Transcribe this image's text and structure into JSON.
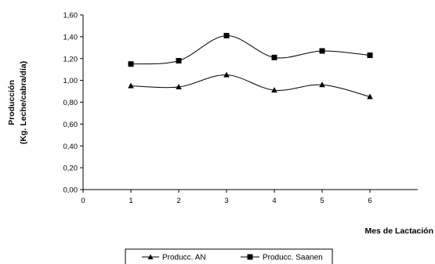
{
  "chart_data": {
    "type": "line",
    "title": "",
    "ylabel_line1": "Producción",
    "ylabel_line2": "(Kg. Leche/cabra/día)",
    "xlabel": "Mes de Lactación",
    "xlim": [
      0,
      7
    ],
    "ylim": [
      0.0,
      1.6
    ],
    "x_ticks": [
      "0",
      "1",
      "2",
      "3",
      "4",
      "5",
      "6"
    ],
    "y_ticks": [
      "0,00",
      "0,20",
      "0,40",
      "0,60",
      "0,80",
      "1,00",
      "1,20",
      "1,40",
      "1,60"
    ],
    "grid": false,
    "legend_position": "bottom",
    "x": [
      1,
      2,
      3,
      4,
      5,
      6
    ],
    "series": [
      {
        "name": "Producc. AN",
        "marker": "triangle",
        "color": "#000000",
        "values": [
          0.95,
          0.94,
          1.05,
          0.91,
          0.96,
          0.85
        ]
      },
      {
        "name": "Producc. Saanen",
        "marker": "square",
        "color": "#000000",
        "values": [
          1.15,
          1.18,
          1.41,
          1.21,
          1.27,
          1.23
        ]
      }
    ]
  }
}
